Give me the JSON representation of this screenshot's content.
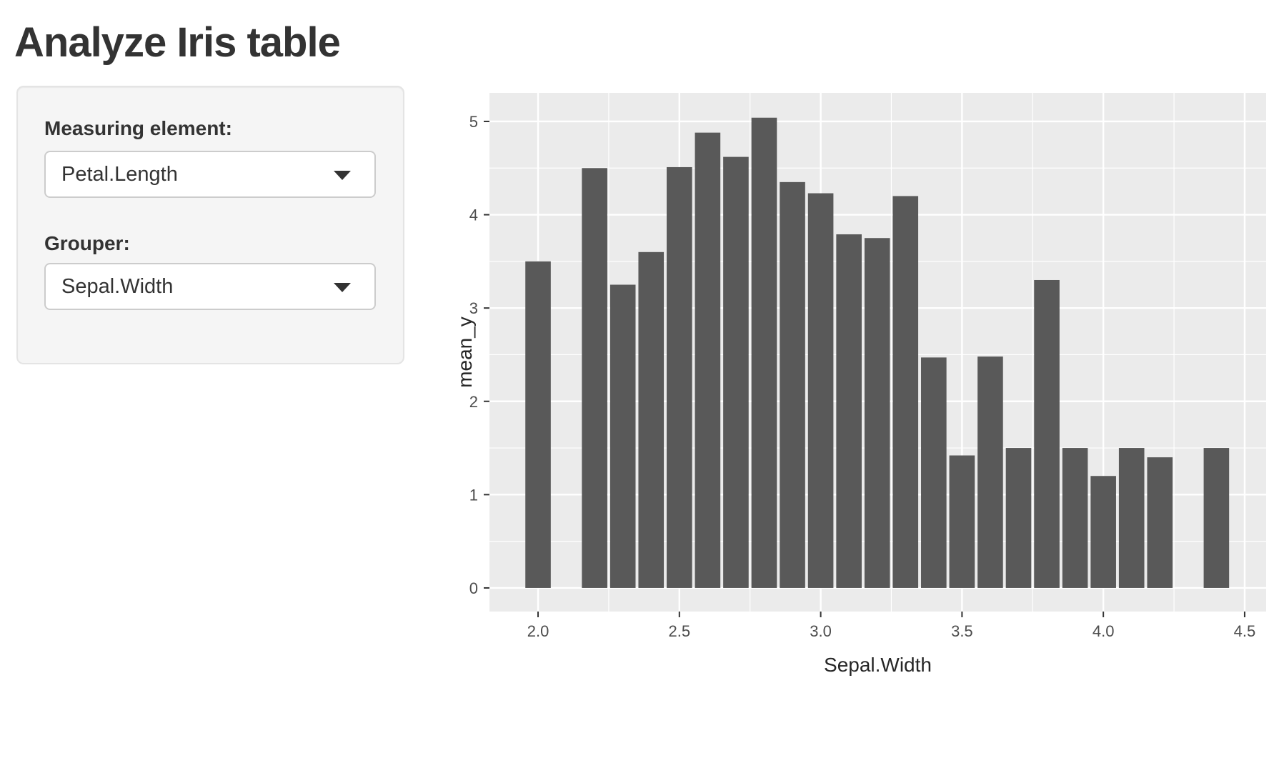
{
  "page": {
    "title": "Analyze Iris table"
  },
  "sidebar": {
    "measuring": {
      "label": "Measuring element:",
      "value": "Petal.Length"
    },
    "grouper": {
      "label": "Grouper:",
      "value": "Sepal.Width"
    }
  },
  "icons": {
    "caret_down": "css-triangle-down"
  },
  "chart_data": {
    "type": "bar",
    "title": "",
    "xlabel": "Sepal.Width",
    "ylabel": "mean_y",
    "categories": [
      2.0,
      2.2,
      2.3,
      2.4,
      2.5,
      2.6,
      2.7,
      2.8,
      2.9,
      3.0,
      3.1,
      3.2,
      3.3,
      3.4,
      3.5,
      3.6,
      3.7,
      3.8,
      3.9,
      4.0,
      4.1,
      4.2,
      4.4
    ],
    "values": [
      3.5,
      4.5,
      3.25,
      3.6,
      4.51,
      4.88,
      4.62,
      5.04,
      4.35,
      4.23,
      3.79,
      3.75,
      4.2,
      2.47,
      1.42,
      2.48,
      1.5,
      3.3,
      1.5,
      1.2,
      1.5,
      1.4,
      1.5
    ],
    "x_tick_values": [
      2.0,
      2.5,
      3.0,
      3.5,
      4.0,
      4.5
    ],
    "x_tick_labels": [
      "2.0",
      "2.5",
      "3.0",
      "3.5",
      "4.0",
      "4.5"
    ],
    "x_minor_values": [
      2.25,
      2.75,
      3.25,
      3.75,
      4.25
    ],
    "y_tick_values": [
      0,
      1,
      2,
      3,
      4,
      5
    ],
    "y_tick_labels": [
      "0",
      "1",
      "2",
      "3",
      "4",
      "5"
    ],
    "y_minor_values": [
      0.5,
      1.5,
      2.5,
      3.5,
      4.5
    ],
    "xlim": [
      1.828,
      4.576
    ],
    "ylim": [
      -0.253,
      5.306
    ],
    "bar_width": 0.09,
    "grid": true,
    "legend": "none",
    "colors": {
      "bar": "#595959",
      "panel_bg": "#EBEBEB",
      "grid": "#FFFFFF",
      "tick_text": "#4D4D4D",
      "axis_title": "#262626",
      "tick_mark": "#333333"
    }
  }
}
